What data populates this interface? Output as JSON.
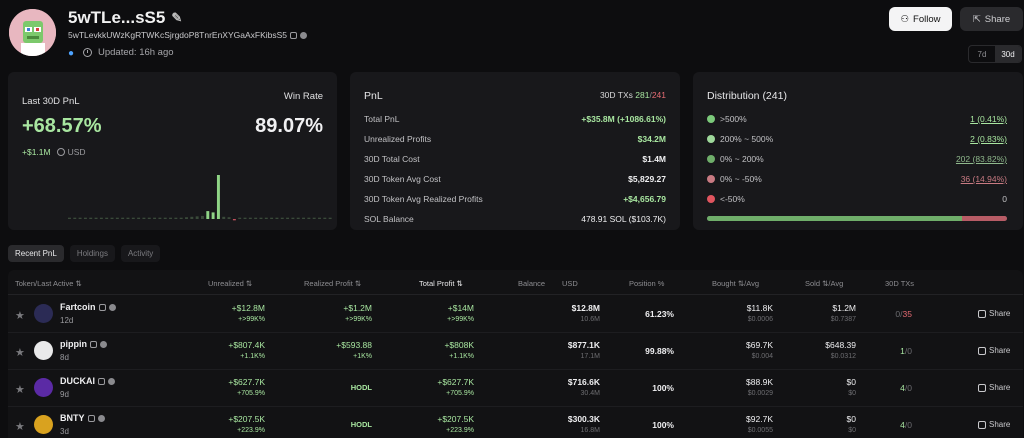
{
  "header": {
    "wallet_name": "5wTLe...sS5",
    "wallet_address": "5wTLevkkUWzKgRTWKcSjrgdoP8TnrEnXYGaAxFKibsS5",
    "updated": "Updated: 16h ago",
    "follow_label": "Follow",
    "share_label": "Share",
    "periods": [
      "7d",
      "30d"
    ]
  },
  "pnl_card": {
    "label": "Last 30D PnL",
    "pnl_pct": "+68.57%",
    "pnl_usd": "+$1.1M",
    "currency": "USD",
    "win_rate_label": "Win Rate",
    "win_rate": "89.07%",
    "spark_values": [
      0.03,
      0.03,
      0.03,
      0.03,
      0.03,
      0.03,
      0.03,
      0.03,
      0.03,
      0.03,
      0.03,
      0.03,
      0.03,
      0.03,
      0.03,
      0.03,
      0.03,
      0.03,
      0.03,
      0.03,
      0.03,
      0.03,
      0.04,
      0.05,
      0.06,
      0.07,
      0.18,
      0.15,
      1.0,
      0.05,
      0.04,
      -0.03,
      0.03,
      0.03,
      0.03,
      0.03,
      0.03,
      0.03,
      0.03,
      0.03,
      0.03,
      0.03,
      0.03,
      0.03,
      0.03,
      0.03,
      0.03,
      0.03,
      0.03,
      0.03
    ]
  },
  "stats_card": {
    "title": "PnL",
    "tx_label": "30D TXs",
    "tx_wins": "281",
    "tx_sep": "/",
    "tx_losses": "241",
    "rows": [
      {
        "key": "Total PnL",
        "value": "+$35.8M (+1086.61%)",
        "style": "green"
      },
      {
        "key": "Unrealized Profits",
        "value": "$34.2M",
        "style": "green"
      },
      {
        "key": "30D Total Cost",
        "value": "$1.4M",
        "style": ""
      },
      {
        "key": "30D Token Avg Cost",
        "value": "$5,829.27",
        "style": ""
      },
      {
        "key": "30D Token Avg Realized Profits",
        "value": "+$4,656.79",
        "style": "green"
      },
      {
        "key": "SOL Balance",
        "value": "478.91 SOL ($103.7K)",
        "style": "sol"
      }
    ]
  },
  "distribution": {
    "title": "Distribution (241)",
    "rows": [
      {
        "label": ">500%",
        "value": "1 (0.41%)",
        "color": "#7bc97a"
      },
      {
        "label": "200% ~ 500%",
        "value": "2 (0.83%)",
        "color": "#9ed89a"
      },
      {
        "label": "0% ~ 200%",
        "value": "202 (83.82%)",
        "color": "#6fae6a"
      },
      {
        "label": "0% ~ -50%",
        "value": "36 (14.94%)",
        "color": "#c87a82"
      },
      {
        "label": "<-50%",
        "value": "0",
        "color": "#e0555f"
      }
    ],
    "green_fraction": 0.85,
    "red_fraction": 0.15
  },
  "tabs": [
    "Recent PnL",
    "Holdings",
    "Activity"
  ],
  "table": {
    "headers": [
      "Token/Last Active ⇅",
      "Unrealized ⇅",
      "Realized Profit ⇅",
      "Total Profit ⇅",
      "Balance",
      "USD",
      "Position %",
      "Bought ⇅/Avg",
      "Sold ⇅/Avg",
      "30D TXs"
    ],
    "rows": [
      {
        "name": "Fartcoin",
        "age": "12d",
        "unreal": "+$12.8M",
        "unreal_pct": "+>99K%",
        "real": "+$1.2M",
        "real_pct": "+>99K%",
        "total": "+$14M",
        "total_pct": "+>99K%",
        "balance": "$12.8M",
        "balance_sub": "10.6M",
        "position": "61.23%",
        "bought": "$11.8K",
        "bought_avg": "$0.0006",
        "sold": "$1.2M",
        "sold_avg": "$0.7387",
        "tx_a": "0",
        "tx_b": "35",
        "share": "Share",
        "icon_color": "#2b2b55"
      },
      {
        "name": "pippin",
        "age": "8d",
        "unreal": "+$807.4K",
        "unreal_pct": "+1.1K%",
        "real": "+$593.88",
        "real_pct": "+1K%",
        "total": "+$808K",
        "total_pct": "+1.1K%",
        "balance": "$877.1K",
        "balance_sub": "17.1M",
        "position": "99.88%",
        "bought": "$69.7K",
        "bought_avg": "$0.004",
        "sold": "$648.39",
        "sold_avg": "$0.0312",
        "tx_a": "1",
        "tx_b": "0",
        "share": "Share",
        "icon_color": "#e9e9ea"
      },
      {
        "name": "DUCKAI",
        "age": "9d",
        "unreal": "+$627.7K",
        "unreal_pct": "+705.9%",
        "real": "HODL",
        "real_pct": "",
        "total": "+$627.7K",
        "total_pct": "+705.9%",
        "balance": "$716.6K",
        "balance_sub": "30.4M",
        "position": "100%",
        "bought": "$88.9K",
        "bought_avg": "$0.0029",
        "sold": "$0",
        "sold_avg": "$0",
        "tx_a": "4",
        "tx_b": "0",
        "share": "Share",
        "icon_color": "#5b2aa5"
      },
      {
        "name": "BNTY",
        "age": "3d",
        "unreal": "+$207.5K",
        "unreal_pct": "+223.9%",
        "real": "HODL",
        "real_pct": "",
        "total": "+$207.5K",
        "total_pct": "+223.9%",
        "balance": "$300.3K",
        "balance_sub": "16.8M",
        "position": "100%",
        "bought": "$92.7K",
        "bought_avg": "$0.0055",
        "sold": "$0",
        "sold_avg": "$0",
        "tx_a": "4",
        "tx_b": "0",
        "share": "Share",
        "icon_color": "#d9a21f"
      }
    ]
  }
}
